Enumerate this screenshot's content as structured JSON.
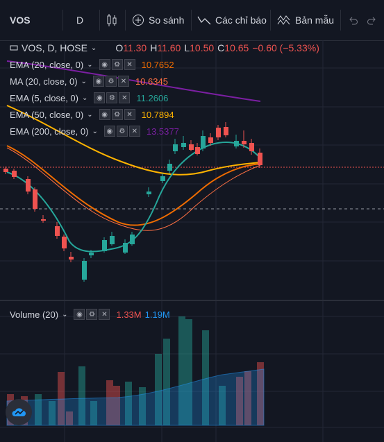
{
  "toolbar": {
    "symbol": "VOS",
    "interval": "D",
    "compare_label": "So sánh",
    "indicators_label": "Các chỉ báo",
    "templates_label": "Bản mẫu"
  },
  "header": {
    "title": "VOS, D, HOSE",
    "open_label": "O",
    "open": "11.30",
    "high_label": "H",
    "high": "11.60",
    "low_label": "L",
    "low": "10.50",
    "close_label": "C",
    "close": "10.65",
    "change": "−0.60 (−5.33%)"
  },
  "indicators": [
    {
      "label": "EMA (20, close, 0)",
      "value": "10.7652",
      "color": "#ef6c00"
    },
    {
      "label": "MA (20, close, 0)",
      "value": "10.6345",
      "color": "#ff7043"
    },
    {
      "label": "EMA (5, close, 0)",
      "value": "11.2606",
      "color": "#26a69a"
    },
    {
      "label": "EMA (50, close, 0)",
      "value": "10.7894",
      "color": "#ffb300"
    },
    {
      "label": "EMA (200, close, 0)",
      "value": "13.5377",
      "color": "#7b1fa2"
    }
  ],
  "volume": {
    "label": "Volume (20)",
    "value": "1.33M",
    "ma_value": "1.19M",
    "value_color": "#ef5350",
    "ma_color": "#2196f3"
  },
  "colors": {
    "up": "#26a69a",
    "down": "#ef5350",
    "background": "#131722"
  }
}
